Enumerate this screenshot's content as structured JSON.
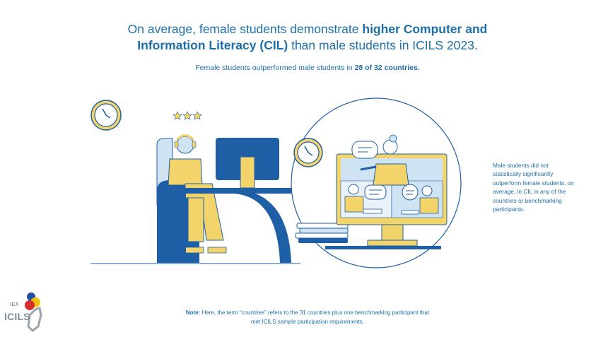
{
  "headline": {
    "line1_prefix": "On average, female students demonstrate ",
    "line1_bold": "higher Computer and",
    "line2_bold": "Information Literacy (CIL)",
    "line2_suffix": " than male students in ICILS 2023."
  },
  "subheadline": {
    "prefix": "Female students outperformed male students in ",
    "bold": "28 of 32 countries."
  },
  "side_note": "Male students did not statistically significantly outperform female students, on average, in CIL in any of the countries or benchmarking participants.",
  "footnote": {
    "label": "Note:",
    "line1": " Here, the term “countries” refers to the 31 countries plus one benchmarking participant that",
    "line2": "met ICILS sample participation requirements."
  },
  "logo": {
    "org": "IEA",
    "brand": "ICILS"
  },
  "colors": {
    "primary_blue": "#1e6fa8",
    "dark_blue": "#1f5fa6",
    "yellow": "#f2d46b",
    "light_blue": "#cfe3f3",
    "logo_red": "#d32f2f",
    "logo_yellow": "#f4c20d",
    "logo_blue": "#1f4fa0"
  },
  "icons": [
    "clock-icon",
    "star-icon",
    "speech-bubble-icon",
    "monitor-icon",
    "books-icon"
  ]
}
